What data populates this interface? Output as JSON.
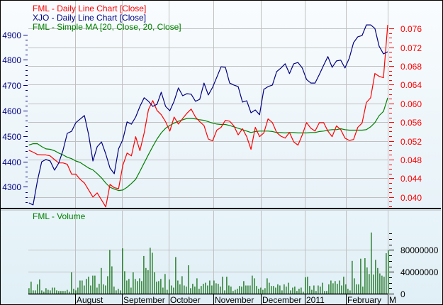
{
  "colors": {
    "fml": "#ff0000",
    "xjo": "#000080",
    "ma": "#008000",
    "volume": "#006400",
    "grid": "#c0c0c0"
  },
  "chart_data": [
    {
      "type": "line",
      "legend": [
        "FML - Daily Line Chart [Close]",
        "XJO - Daily Line Chart [Close]",
        "FML - Simple MA [20, Close, 20, Close]"
      ],
      "legend_placement": "top-left",
      "grid": true,
      "left_axis": {
        "color": "#000080",
        "range": [
          4212,
          5036
        ],
        "tick_labels": [
          "4300",
          "4400",
          "4500",
          "4600",
          "4700",
          "4800",
          "4900"
        ],
        "minor_step": 20
      },
      "right_axis": {
        "color": "#ff0000",
        "range": [
          0.0374,
          0.0821
        ],
        "tick_labels": [
          "0.040",
          "0.044",
          "0.048",
          "0.052",
          "0.056",
          "0.060",
          "0.064",
          "0.068",
          "0.072",
          "0.076"
        ],
        "minor_step": 0.001
      },
      "x_axis": {
        "labels": [
          "August",
          "September",
          "October",
          "November",
          "December",
          "2011",
          "February",
          "M"
        ]
      },
      "series": [
        {
          "name": "FML - Daily Line Chart [Close]",
          "axis": "right",
          "color": "#ff0000",
          "values": [
            0.05,
            0.0496,
            0.0491,
            0.049,
            0.049,
            0.0488,
            0.048,
            0.0473,
            0.0473,
            0.047,
            0.0449,
            0.0449,
            0.0438,
            0.043,
            0.0415,
            0.04,
            0.0409,
            0.0394,
            0.0379,
            0.0427,
            0.042,
            0.0418,
            0.0468,
            0.0494,
            0.0488,
            0.0529,
            0.0499,
            0.0537,
            0.0587,
            0.0606,
            0.0585,
            0.0576,
            0.0561,
            0.0541,
            0.0571,
            0.0556,
            0.0568,
            0.0579,
            0.0588,
            0.0571,
            0.0561,
            0.0553,
            0.0524,
            0.052,
            0.0543,
            0.0549,
            0.0564,
            0.0562,
            0.0552,
            0.0533,
            0.0546,
            0.0529,
            0.0502,
            0.0549,
            0.0529,
            0.0537,
            0.0567,
            0.0559,
            0.0538,
            0.053,
            0.0526,
            0.0538,
            0.0518,
            0.0511,
            0.0533,
            0.0559,
            0.0547,
            0.0541,
            0.0559,
            0.0559,
            0.0541,
            0.0529,
            0.0552,
            0.0544,
            0.0526,
            0.0521,
            0.0523,
            0.0549,
            0.0558,
            0.0602,
            0.0612,
            0.0664,
            0.0658,
            0.0655,
            0.0768
          ]
        },
        {
          "name": "XJO - Daily Line Chart [Close]",
          "axis": "left",
          "color": "#000080",
          "values": [
            4237,
            4229,
            4324,
            4399,
            4408,
            4402,
            4366,
            4394,
            4444,
            4511,
            4519,
            4553,
            4567,
            4581,
            4505,
            4402,
            4458,
            4477,
            4430,
            4374,
            4352,
            4450,
            4486,
            4556,
            4547,
            4575,
            4617,
            4651,
            4637,
            4617,
            4625,
            4673,
            4617,
            4600,
            4637,
            4690,
            4659,
            4667,
            4665,
            4637,
            4645,
            4709,
            4662,
            4692,
            4732,
            4773,
            4771,
            4709,
            4701,
            4695,
            4634,
            4639,
            4592,
            4603,
            4584,
            4684,
            4695,
            4701,
            4754,
            4768,
            4785,
            4746,
            4785,
            4790,
            4768,
            4723,
            4709,
            4709,
            4743,
            4779,
            4813,
            4771,
            4796,
            4799,
            4768,
            4807,
            4868,
            4891,
            4896,
            4938,
            4938,
            4924,
            4854,
            4824,
            4832
          ]
        },
        {
          "name": "FML - Simple MA [20, Close, 20, Close]",
          "axis": "right",
          "color": "#008000",
          "values": [
            0.0511,
            0.0514,
            0.0514,
            0.0508,
            0.0503,
            0.0502,
            0.0499,
            0.0494,
            0.049,
            0.0485,
            0.0482,
            0.0477,
            0.0474,
            0.0468,
            0.0462,
            0.0458,
            0.045,
            0.0441,
            0.043,
            0.0421,
            0.0417,
            0.0414,
            0.0415,
            0.0421,
            0.0429,
            0.0438,
            0.0455,
            0.0473,
            0.0491,
            0.0508,
            0.0524,
            0.0537,
            0.0547,
            0.0553,
            0.0558,
            0.0562,
            0.0565,
            0.0568,
            0.0568,
            0.0567,
            0.0565,
            0.0564,
            0.0561,
            0.0558,
            0.0556,
            0.0555,
            0.0555,
            0.0553,
            0.055,
            0.0547,
            0.0544,
            0.0541,
            0.0538,
            0.054,
            0.0541,
            0.0541,
            0.0541,
            0.054,
            0.0538,
            0.0538,
            0.0537,
            0.0538,
            0.0538,
            0.0537,
            0.0537,
            0.0537,
            0.0538,
            0.0538,
            0.054,
            0.0541,
            0.0543,
            0.0544,
            0.0544,
            0.0546,
            0.0544,
            0.0543,
            0.0543,
            0.0543,
            0.0543,
            0.0544,
            0.055,
            0.0559,
            0.0574,
            0.0583,
            0.0612
          ]
        }
      ]
    },
    {
      "type": "bar",
      "title": "FML - Volume",
      "color": "#006400",
      "ylim": [
        0,
        152000000
      ],
      "tick_labels": [
        "0",
        "40000000",
        "80000000"
      ],
      "minor_step": 10000000,
      "grid": true,
      "values": [
        10000000,
        22000000,
        6000000,
        6000000,
        17000000,
        26000000,
        6000000,
        3500000,
        10000000,
        7000000,
        6000000,
        11000000,
        11000000,
        6000000,
        5000000,
        5000000,
        5000000,
        5000000,
        7000000,
        3500000,
        39000000,
        9000000,
        6000000,
        11000000,
        24000000,
        24000000,
        15000000,
        27000000,
        31000000,
        15000000,
        33000000,
        33000000,
        11000000,
        18000000,
        47000000,
        17000000,
        15000000,
        32000000,
        80000000,
        50000000,
        13000000,
        6000000,
        9000000,
        6000000,
        83000000,
        41000000,
        24000000,
        27000000,
        11000000,
        39000000,
        27000000,
        23000000,
        28000000,
        23000000,
        69000000,
        47000000,
        43000000,
        84000000,
        75000000,
        39000000,
        22000000,
        23000000,
        27000000,
        11000000,
        36000000,
        7000000,
        26000000,
        15000000,
        11000000,
        67000000,
        24000000,
        17000000,
        32000000,
        15000000,
        13000000,
        52000000,
        10000000,
        18000000,
        13000000,
        28000000,
        9000000,
        14000000,
        18000000,
        20000000,
        15000000,
        24000000,
        15000000,
        24000000,
        19000000,
        18000000,
        13000000,
        31000000,
        6000000,
        31000000,
        15000000,
        13000000,
        5000000,
        7000000,
        9000000,
        14000000,
        13000000,
        23000000,
        15000000,
        15000000,
        15000000,
        33000000,
        28000000,
        14000000,
        9000000,
        11000000,
        7000000,
        10000000,
        28000000,
        20000000,
        14000000,
        14000000,
        11000000,
        17000000,
        15000000,
        6000000,
        17000000,
        13000000,
        20000000,
        6000000,
        11000000,
        13000000,
        5000000,
        9000000,
        11000000,
        3500000,
        30000000,
        31000000,
        14000000,
        7000000,
        15000000,
        5000000,
        15000000,
        13000000,
        20000000,
        5000000,
        5000000,
        17000000,
        24000000,
        19000000,
        23000000,
        18000000,
        24000000,
        15000000,
        31000000,
        17000000,
        9000000,
        6000000,
        60000000,
        28000000,
        17000000,
        17000000,
        64000000,
        13000000,
        65000000,
        48000000,
        36000000,
        112000000,
        35000000,
        62000000,
        47000000,
        37000000,
        33000000,
        31000000,
        74000000,
        80000000
      ]
    }
  ]
}
